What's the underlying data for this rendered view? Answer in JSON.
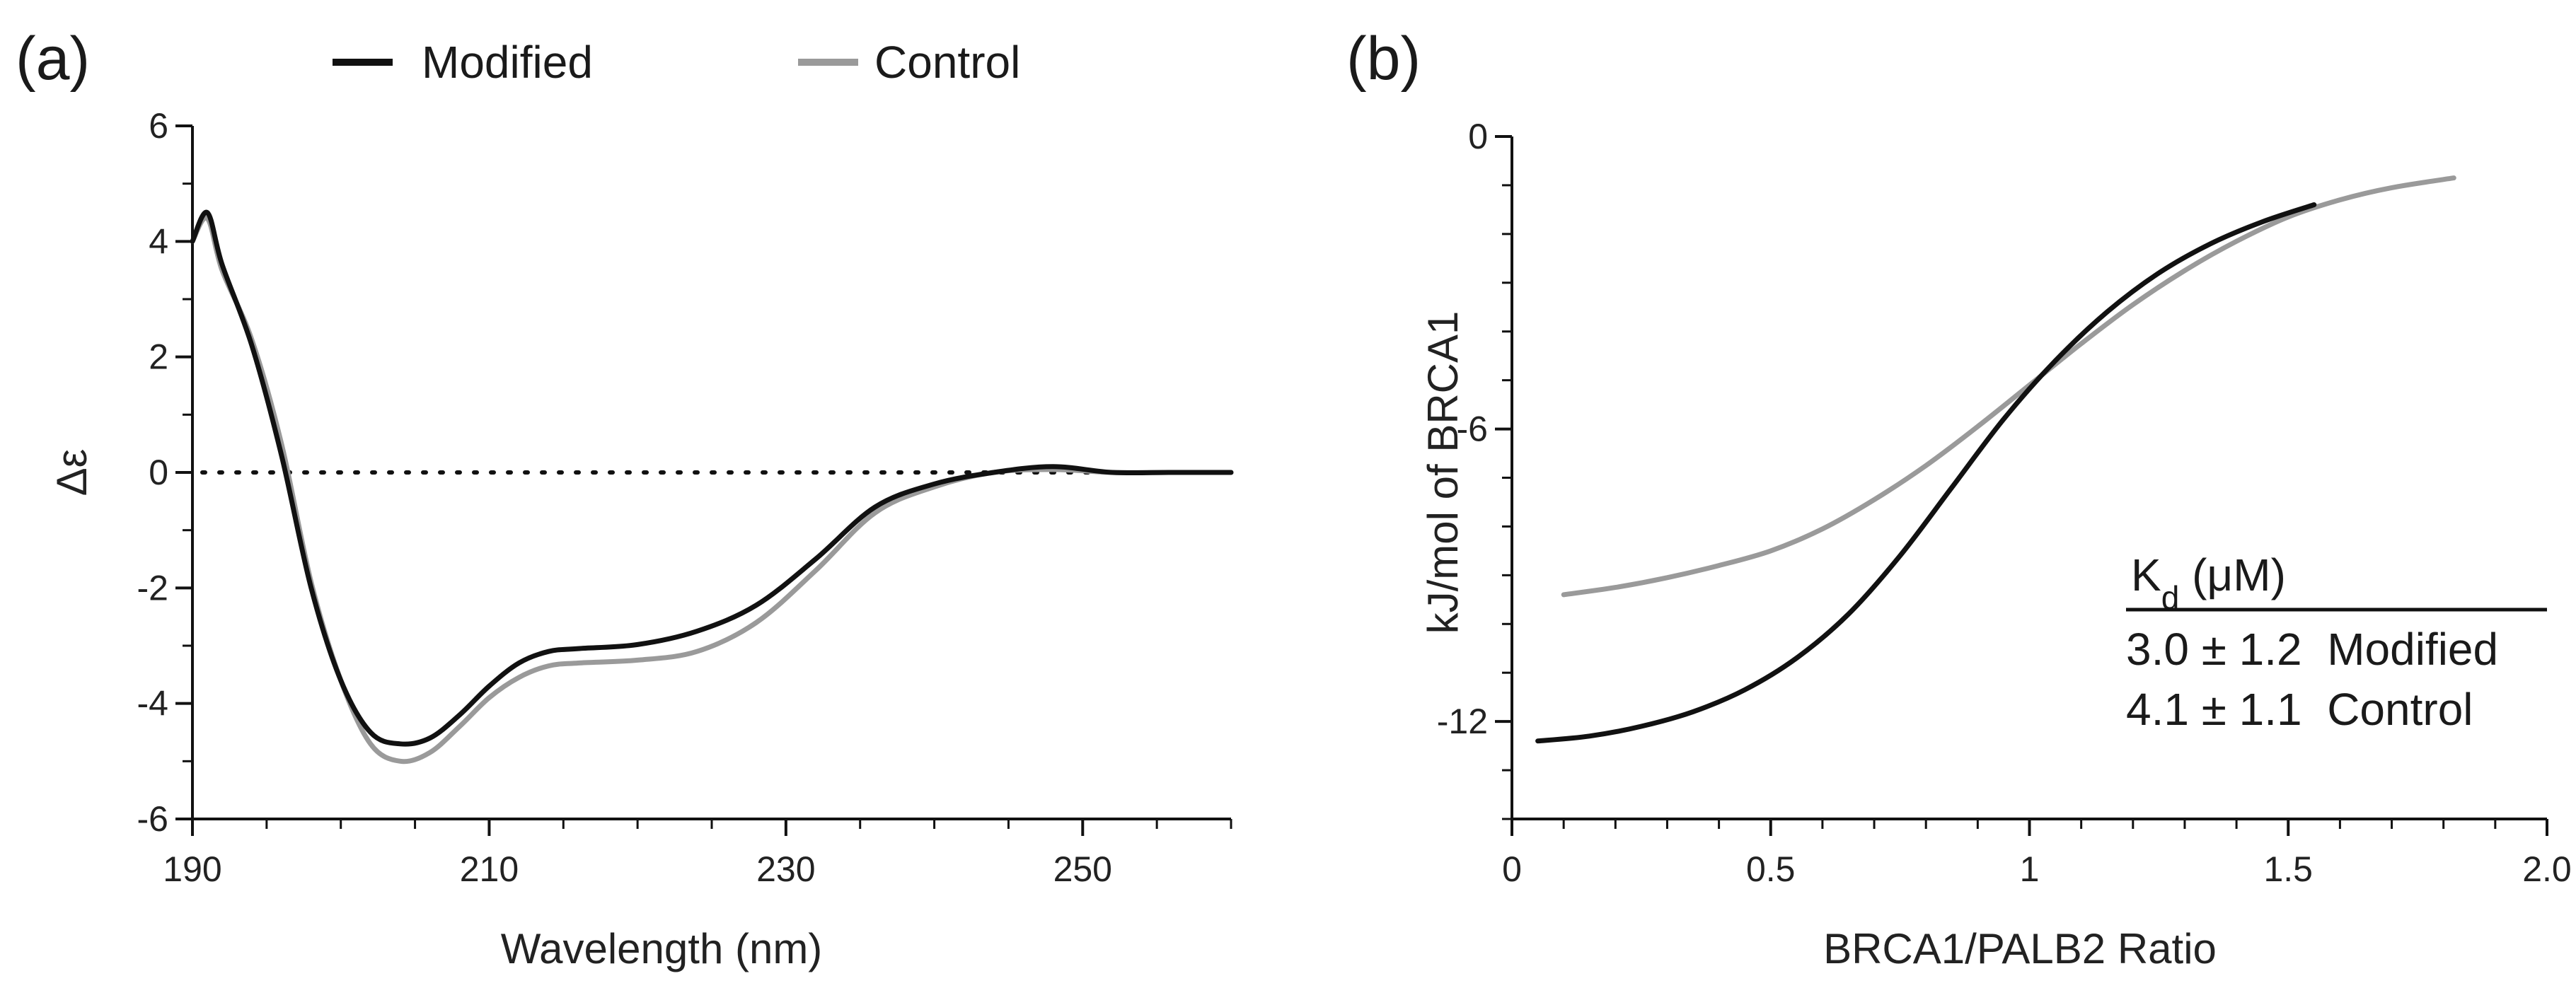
{
  "chart_data": [
    {
      "panel": "(a)",
      "type": "line",
      "xlabel": "Wavelength (nm)",
      "ylabel": "Δε",
      "xlim": [
        190,
        260
      ],
      "ylim": [
        -6,
        6
      ],
      "xticks": [
        190,
        210,
        230,
        250
      ],
      "yticks": [
        6,
        4,
        2,
        0,
        -2,
        -4,
        -6
      ],
      "xtick_labels": [
        "190",
        "210",
        "230",
        "250"
      ],
      "ytick_labels": [
        "6",
        "4",
        "2",
        "0",
        "-2",
        "-4",
        "-6"
      ],
      "reference_line": {
        "y": 0,
        "style": "dotted"
      },
      "legend": [
        {
          "name": "Modified",
          "color": "#111111"
        },
        {
          "name": "Control",
          "color": "#9a9a9a"
        }
      ],
      "series": [
        {
          "name": "Control",
          "color": "#9a9a9a",
          "x": [
            190,
            191,
            192,
            194,
            196,
            198,
            200,
            202,
            204,
            206,
            208,
            210,
            212,
            214,
            216,
            220,
            224,
            228,
            232,
            236,
            240,
            244,
            248,
            252,
            256,
            260
          ],
          "y": [
            4.0,
            4.4,
            3.5,
            2.3,
            0.5,
            -1.9,
            -3.6,
            -4.7,
            -5.0,
            -4.85,
            -4.4,
            -3.9,
            -3.55,
            -3.35,
            -3.3,
            -3.25,
            -3.1,
            -2.6,
            -1.7,
            -0.7,
            -0.25,
            0.0,
            0.05,
            0.0,
            0.0,
            0.0
          ]
        },
        {
          "name": "Modified",
          "color": "#111111",
          "x": [
            190,
            191,
            192,
            194,
            196,
            198,
            200,
            202,
            204,
            206,
            208,
            210,
            212,
            214,
            216,
            220,
            224,
            228,
            232,
            236,
            240,
            244,
            248,
            252,
            256,
            260
          ],
          "y": [
            4.0,
            4.5,
            3.6,
            2.2,
            0.3,
            -2.0,
            -3.6,
            -4.5,
            -4.7,
            -4.6,
            -4.2,
            -3.7,
            -3.3,
            -3.1,
            -3.05,
            -2.98,
            -2.75,
            -2.3,
            -1.5,
            -0.6,
            -0.2,
            0.0,
            0.1,
            0.0,
            0.0,
            0.0
          ]
        }
      ]
    },
    {
      "panel": "(b)",
      "type": "line",
      "xlabel": "BRCA1/PALB2 Ratio",
      "ylabel": "kJ/mol of BRCA1",
      "xlim": [
        0,
        2.0
      ],
      "ylim": [
        -14,
        0
      ],
      "xticks": [
        0,
        0.5,
        1,
        1.5,
        2.0
      ],
      "yticks": [
        0,
        -6,
        -12
      ],
      "xtick_labels": [
        "0",
        "0.5",
        "1",
        "1.5",
        "2.0"
      ],
      "ytick_labels": [
        "0",
        "-6",
        "-12"
      ],
      "kd_header": "K",
      "kd_subscript": "d",
      "kd_unit": " (μM)",
      "kd_rows": [
        "3.0 ± 1.2  Modified",
        "4.1 ± 1.1  Control"
      ],
      "series": [
        {
          "name": "Control",
          "color": "#9a9a9a",
          "x": [
            0.1,
            0.2,
            0.3,
            0.4,
            0.5,
            0.6,
            0.7,
            0.8,
            0.9,
            1.0,
            1.1,
            1.2,
            1.3,
            1.4,
            1.5,
            1.6,
            1.7,
            1.82
          ],
          "y": [
            -9.4,
            -9.25,
            -9.05,
            -8.8,
            -8.5,
            -8.05,
            -7.45,
            -6.75,
            -5.95,
            -5.1,
            -4.25,
            -3.45,
            -2.75,
            -2.15,
            -1.65,
            -1.3,
            -1.05,
            -0.85
          ]
        },
        {
          "name": "Modified",
          "color": "#111111",
          "x": [
            0.05,
            0.15,
            0.25,
            0.35,
            0.45,
            0.55,
            0.65,
            0.75,
            0.85,
            0.95,
            1.05,
            1.15,
            1.25,
            1.35,
            1.45,
            1.55
          ],
          "y": [
            -12.4,
            -12.3,
            -12.1,
            -11.8,
            -11.35,
            -10.7,
            -9.8,
            -8.6,
            -7.2,
            -5.8,
            -4.6,
            -3.6,
            -2.8,
            -2.2,
            -1.75,
            -1.4
          ]
        }
      ]
    }
  ]
}
